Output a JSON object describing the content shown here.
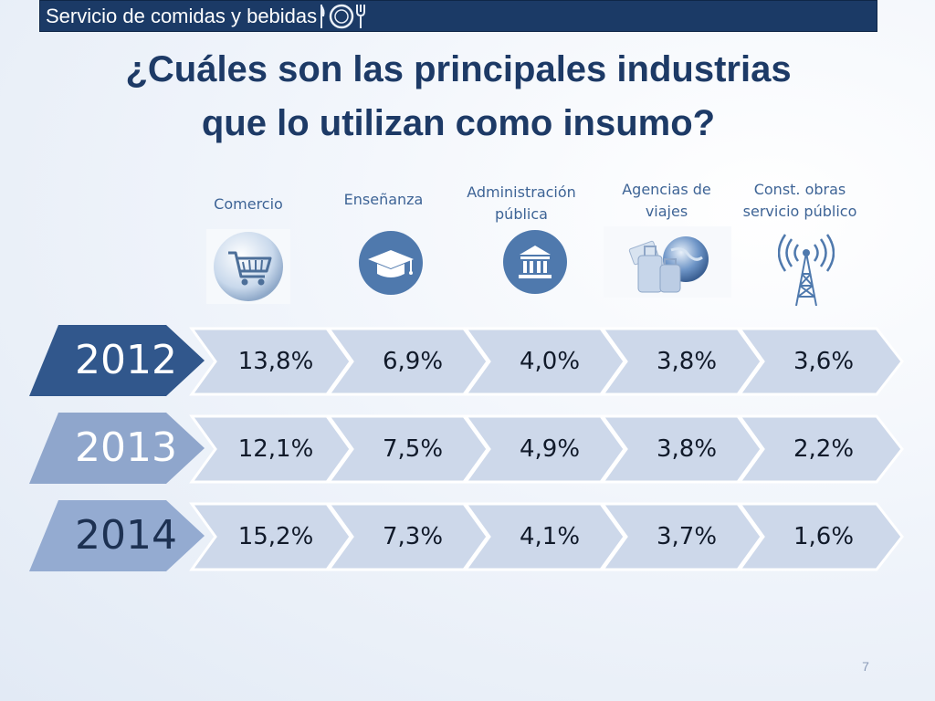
{
  "header": {
    "title": "Servicio de comidas y bebidas",
    "icons": [
      "knife-icon",
      "plate-icon",
      "fork-icon"
    ]
  },
  "slide": {
    "title": "¿Cuáles son las principales industrias\nque lo utilizan como insumo?",
    "page_number": "7"
  },
  "categories": [
    {
      "label": "Comercio",
      "icon": "shopping-cart-icon"
    },
    {
      "label": "Enseñanza",
      "icon": "graduation-cap-icon"
    },
    {
      "label": "Administración\npública",
      "icon": "government-building-icon"
    },
    {
      "label": "Agencias de\nviajes",
      "icon": "luggage-globe-icon"
    },
    {
      "label": "Const. obras\nservicio público",
      "icon": "radio-tower-icon"
    }
  ],
  "rows": [
    {
      "year": "2012",
      "values": [
        "13,8%",
        "6,9%",
        "4,0%",
        "3,8%",
        "3,6%"
      ]
    },
    {
      "year": "2013",
      "values": [
        "12,1%",
        "7,5%",
        "4,9%",
        "3,8%",
        "2,2%"
      ]
    },
    {
      "year": "2014",
      "values": [
        "15,2%",
        "7,3%",
        "4,1%",
        "3,7%",
        "1,6%"
      ]
    }
  ],
  "colors": {
    "header_bar": "#1b3a66",
    "title": "#1d3a66",
    "category_label": "#3e6496",
    "icon_blue": "#4f79ad",
    "year_2012": "#31578c",
    "year_2013": "#8fa6cc",
    "year_2014": "#94abd1",
    "cell_chevron": "#cdd8ea"
  }
}
